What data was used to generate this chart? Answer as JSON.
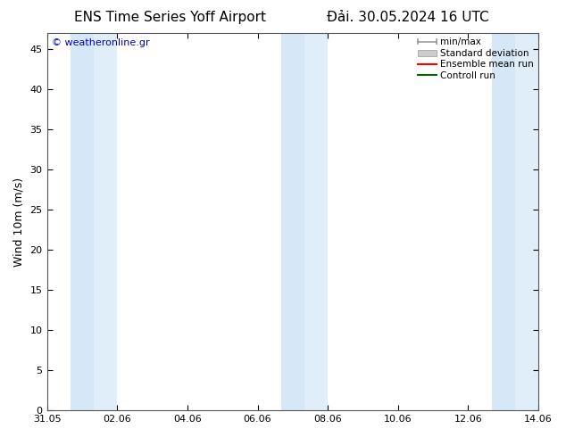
{
  "title_left": "ENS Time Series Yoff Airport",
  "title_right": "Đải. 30.05.2024 16 UTC",
  "ylabel": "Wind 10m (m/s)",
  "ylim": [
    0,
    47
  ],
  "yticks": [
    0,
    5,
    10,
    15,
    20,
    25,
    30,
    35,
    40,
    45
  ],
  "xtick_labels": [
    "31.05",
    "02.06",
    "04.06",
    "06.06",
    "08.06",
    "10.06",
    "12.06",
    "14.06"
  ],
  "xtick_positions": [
    0,
    2,
    4,
    6,
    8,
    10,
    12,
    14
  ],
  "bg_color": "#ffffff",
  "plot_bg_color": "#ffffff",
  "shaded_bands": [
    {
      "x_start": 0.667,
      "x_end": 1.333,
      "color": "#d6e8f8"
    },
    {
      "x_start": 1.333,
      "x_end": 2.0,
      "color": "#e0eef9"
    },
    {
      "x_start": 6.667,
      "x_end": 7.333,
      "color": "#d6e8f8"
    },
    {
      "x_start": 7.333,
      "x_end": 8.0,
      "color": "#e0eef9"
    },
    {
      "x_start": 12.667,
      "x_end": 13.333,
      "color": "#d6e8f8"
    },
    {
      "x_start": 13.333,
      "x_end": 14.0,
      "color": "#e0eef9"
    }
  ],
  "watermark_text": "© weatheronline.gr",
  "watermark_color": "#0000cc",
  "legend_items": [
    {
      "label": "min/max",
      "color": "#999999",
      "type": "errorbar"
    },
    {
      "label": "Standard deviation",
      "color": "#cccccc",
      "type": "bar"
    },
    {
      "label": "Ensemble mean run",
      "color": "#ff0000",
      "type": "line"
    },
    {
      "label": "Controll run",
      "color": "#006600",
      "type": "line"
    }
  ],
  "title_fontsize": 11,
  "axis_fontsize": 9,
  "tick_fontsize": 8,
  "legend_fontsize": 7.5,
  "total_days": 14,
  "font_color": "#000000",
  "watermark_fontsize": 8
}
